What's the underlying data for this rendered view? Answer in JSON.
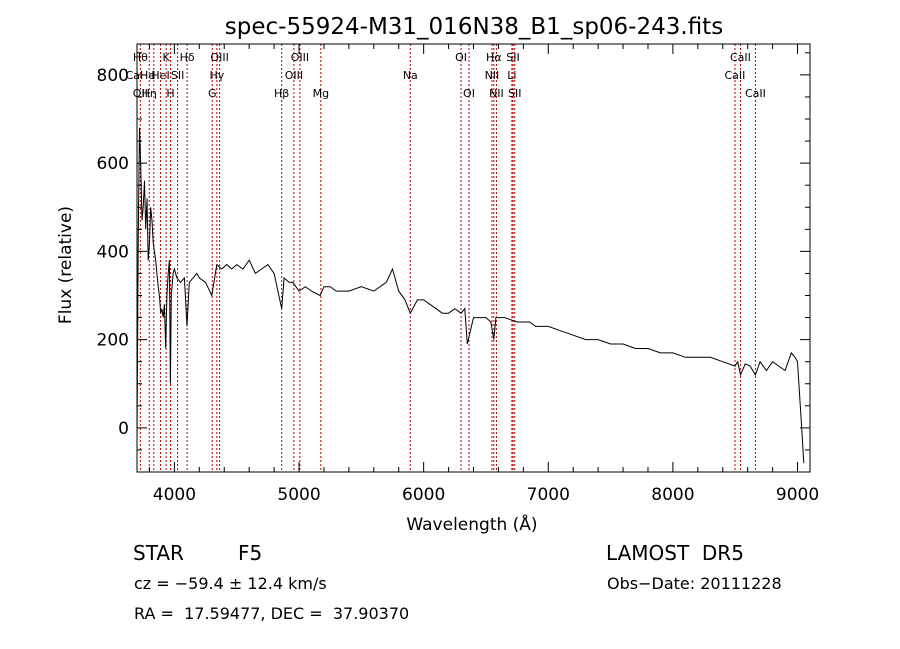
{
  "chart_data": {
    "type": "line",
    "title": "spec-55924-M31_016N38_B1_sp06-243.fits",
    "xlabel": "Wavelength (Å)",
    "ylabel": "Flux (relative)",
    "xlim": [
      3700,
      9100
    ],
    "ylim": [
      -100,
      870
    ],
    "x_ticks": [
      4000,
      5000,
      6000,
      7000,
      8000,
      9000
    ],
    "y_ticks": [
      0,
      200,
      400,
      600,
      800
    ],
    "grid": false,
    "line_color": "#000000",
    "marker_color": "#c00000",
    "series": [
      {
        "x": [
          3700,
          3710,
          3720,
          3730,
          3740,
          3750,
          3760,
          3770,
          3780,
          3790,
          3800,
          3810,
          3820,
          3830,
          3840,
          3850,
          3860,
          3870,
          3880,
          3890,
          3900,
          3910,
          3920,
          3930,
          3933,
          3940,
          3950,
          3960,
          3968,
          3975,
          3990,
          4000,
          4020,
          4050,
          4080,
          4101,
          4120,
          4150,
          4180,
          4200,
          4250,
          4300,
          4340,
          4380,
          4420,
          4460,
          4500,
          4550,
          4600,
          4650,
          4700,
          4750,
          4800,
          4861,
          4880,
          4920,
          4950,
          5000,
          5050,
          5100,
          5170,
          5200,
          5250,
          5300,
          5400,
          5500,
          5600,
          5700,
          5750,
          5800,
          5850,
          5893,
          5950,
          6000,
          6050,
          6100,
          6150,
          6200,
          6250,
          6300,
          6330,
          6350,
          6400,
          6450,
          6500,
          6540,
          6563,
          6580,
          6600,
          6650,
          6700,
          6750,
          6800,
          6850,
          6900,
          6950,
          7000,
          7100,
          7200,
          7300,
          7400,
          7500,
          7600,
          7700,
          7800,
          7900,
          8000,
          8100,
          8200,
          8300,
          8400,
          8498,
          8520,
          8542,
          8580,
          8620,
          8662,
          8700,
          8750,
          8800,
          8850,
          8900,
          8950,
          8980,
          9000,
          9020,
          9040,
          9050
        ],
        "y": [
          -30,
          420,
          680,
          600,
          470,
          500,
          560,
          450,
          520,
          380,
          420,
          500,
          470,
          420,
          400,
          380,
          350,
          320,
          300,
          260,
          270,
          250,
          280,
          180,
          210,
          300,
          350,
          380,
          100,
          300,
          350,
          360,
          340,
          330,
          340,
          230,
          330,
          340,
          350,
          340,
          330,
          300,
          370,
          360,
          370,
          360,
          370,
          360,
          380,
          350,
          360,
          370,
          350,
          270,
          340,
          330,
          330,
          310,
          320,
          310,
          300,
          320,
          320,
          310,
          310,
          320,
          310,
          330,
          360,
          310,
          290,
          260,
          290,
          290,
          280,
          270,
          260,
          260,
          270,
          260,
          270,
          190,
          250,
          250,
          250,
          240,
          200,
          250,
          250,
          250,
          245,
          240,
          240,
          240,
          230,
          230,
          230,
          220,
          210,
          200,
          200,
          190,
          190,
          180,
          180,
          170,
          170,
          160,
          160,
          160,
          150,
          140,
          150,
          120,
          145,
          140,
          120,
          150,
          130,
          150,
          140,
          130,
          170,
          160,
          150,
          60,
          -30,
          -80
        ]
      }
    ],
    "lines": [
      {
        "wave": 3727,
        "rows": [
          "Hθ",
          "CaHe",
          "OII"
        ]
      },
      {
        "wave": 3798,
        "rows": [
          " ",
          " ",
          "Hη"
        ]
      },
      {
        "wave": 3835,
        "rows": [
          " ",
          "I",
          " "
        ]
      },
      {
        "wave": 3889,
        "rows": [
          " ",
          "HeI",
          " "
        ]
      },
      {
        "wave": 3934,
        "rows": [
          "K",
          " ",
          " "
        ]
      },
      {
        "wave": 3969,
        "rows": [
          " ",
          " ",
          "H"
        ]
      },
      {
        "wave": 4026,
        "rows": [
          " ",
          "SII",
          " "
        ]
      },
      {
        "wave": 4102,
        "rows": [
          "Hδ",
          " ",
          " "
        ]
      },
      {
        "wave": 4304,
        "rows": [
          " ",
          " ",
          "G"
        ]
      },
      {
        "wave": 4341,
        "rows": [
          " ",
          "Hγ",
          " "
        ]
      },
      {
        "wave": 4363,
        "rows": [
          "OIII",
          " ",
          " "
        ]
      },
      {
        "wave": 4861,
        "rows": [
          " ",
          " ",
          "Hβ"
        ]
      },
      {
        "wave": 4959,
        "rows": [
          " ",
          "OIII",
          " "
        ]
      },
      {
        "wave": 5007,
        "rows": [
          "OIII",
          " ",
          " "
        ]
      },
      {
        "wave": 5175,
        "rows": [
          " ",
          " ",
          "Mg"
        ]
      },
      {
        "wave": 5893,
        "rows": [
          " ",
          "Na",
          " "
        ]
      },
      {
        "wave": 6300,
        "rows": [
          "OI",
          " ",
          " "
        ]
      },
      {
        "wave": 6364,
        "rows": [
          " ",
          " ",
          "OI"
        ]
      },
      {
        "wave": 6548,
        "rows": [
          " ",
          "NII",
          " "
        ]
      },
      {
        "wave": 6563,
        "rows": [
          "Hα",
          " ",
          " "
        ]
      },
      {
        "wave": 6584,
        "rows": [
          " ",
          " ",
          "NII"
        ]
      },
      {
        "wave": 6708,
        "rows": [
          " ",
          "Li",
          " "
        ]
      },
      {
        "wave": 6717,
        "rows": [
          "SII",
          " ",
          " "
        ]
      },
      {
        "wave": 6731,
        "rows": [
          " ",
          " ",
          "SII"
        ]
      },
      {
        "wave": 8498,
        "rows": [
          " ",
          "CaII",
          " "
        ]
      },
      {
        "wave": 8542,
        "rows": [
          "CaII",
          " ",
          " "
        ]
      },
      {
        "wave": 8662,
        "rows": [
          " ",
          " ",
          "CaII"
        ]
      }
    ]
  },
  "info": {
    "class": "STAR",
    "subclass": "F5",
    "survey": "LAMOST  DR5",
    "cz": "cz = −59.4 ± 12.4 km/s",
    "obs_date": "Obs−Date: 20111228",
    "coords": "RA =  17.59477, DEC =  37.90370"
  }
}
